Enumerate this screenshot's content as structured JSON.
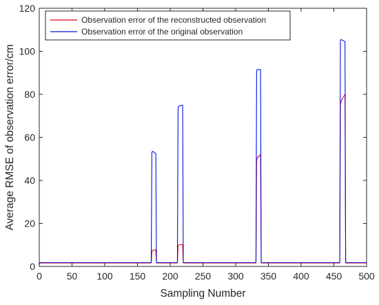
{
  "chart_data": {
    "type": "line",
    "title": "",
    "xlabel": "Sampling Number",
    "ylabel": "Average RMSE of observation error/cm",
    "xlim": [
      0,
      500
    ],
    "ylim": [
      0,
      120
    ],
    "xticks": [
      0,
      50,
      100,
      150,
      200,
      250,
      300,
      350,
      400,
      450,
      500
    ],
    "yticks": [
      0,
      20,
      40,
      60,
      80,
      100,
      120
    ],
    "grid": false,
    "box": true,
    "legend_position": "top-left",
    "series": [
      {
        "name": "Observation error of the reconstructed observation",
        "color": "#e8000b",
        "x": [
          0,
          1,
          2,
          171,
          172,
          173,
          178,
          179,
          211,
          212,
          213,
          219,
          220,
          331,
          332,
          333,
          338,
          339,
          459,
          460,
          461,
          467,
          468,
          500
        ],
        "y": [
          0.8,
          1.6,
          1.6,
          1.6,
          7,
          7.4,
          7.8,
          1.6,
          1.6,
          9.5,
          10,
          10.2,
          1.6,
          1.6,
          49,
          50.5,
          52,
          1.6,
          1.6,
          75,
          77,
          80,
          1.6,
          1.6
        ]
      },
      {
        "name": "Observation error of the original observation",
        "color": "#0011e0",
        "x": [
          0,
          1,
          2,
          171,
          172,
          173,
          178,
          179,
          211,
          212,
          213,
          219,
          220,
          331,
          332,
          333,
          338,
          339,
          459,
          460,
          461,
          467,
          468,
          500
        ],
        "y": [
          1.2,
          1.8,
          1.8,
          1.8,
          53,
          53.5,
          52.5,
          1.8,
          1.8,
          73.5,
          74.5,
          75,
          1.8,
          1.8,
          91,
          91.5,
          91.5,
          1.8,
          1.8,
          105,
          105.5,
          104.5,
          1.8,
          1.8
        ]
      }
    ]
  }
}
